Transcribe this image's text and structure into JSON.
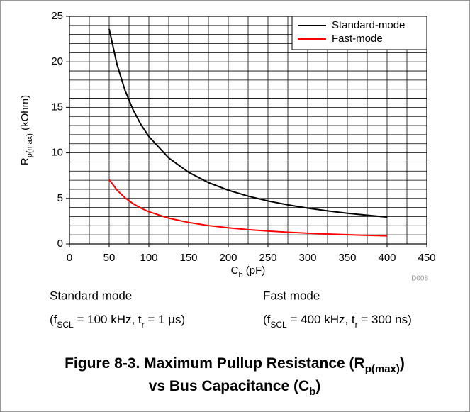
{
  "chart_data": {
    "type": "line",
    "x": [
      50,
      60,
      70,
      80,
      90,
      100,
      125,
      150,
      175,
      200,
      225,
      250,
      275,
      300,
      325,
      350,
      375,
      400
    ],
    "series": [
      {
        "name": "Standard-mode",
        "color": "#000000",
        "values": [
          23.6,
          19.67,
          16.86,
          14.75,
          13.11,
          11.8,
          9.44,
          7.87,
          6.74,
          5.9,
          5.25,
          4.72,
          4.29,
          3.93,
          3.63,
          3.37,
          3.15,
          2.95
        ]
      },
      {
        "name": "Fast-mode",
        "color": "#ff0000",
        "values": [
          7.08,
          5.9,
          5.06,
          4.43,
          3.93,
          3.54,
          2.83,
          2.36,
          2.02,
          1.77,
          1.57,
          1.42,
          1.29,
          1.18,
          1.09,
          1.01,
          0.94,
          0.89
        ]
      }
    ],
    "xlim": [
      0,
      450
    ],
    "ylim": [
      0,
      25
    ],
    "xticks": [
      0,
      50,
      100,
      150,
      200,
      250,
      300,
      350,
      400,
      450
    ],
    "yticks": [
      0,
      5,
      10,
      15,
      20,
      25
    ],
    "x_minor_step": 25,
    "y_minor_step": 1,
    "grid": true,
    "legend": "upper right",
    "x_label": [
      "C",
      "b",
      " (pF)"
    ],
    "y_label": [
      "R",
      "p(max)",
      " (kOhm)"
    ],
    "figure_id": "D008",
    "notes": [
      {
        "heading": "Standard mode",
        "condition": [
          "(f",
          "SCL",
          " = 100 kHz, t",
          "r",
          " = 1 µs)"
        ]
      },
      {
        "heading": "Fast mode",
        "condition": [
          "(f",
          "SCL",
          " = 400 kHz, t",
          "r",
          " = 300 ns)"
        ]
      }
    ],
    "caption": [
      [
        "Figure 8-3. Maximum Pullup Resistance (R",
        "p(max)",
        ")"
      ],
      [
        "vs Bus Capacitance (C",
        "b",
        ")"
      ]
    ]
  }
}
